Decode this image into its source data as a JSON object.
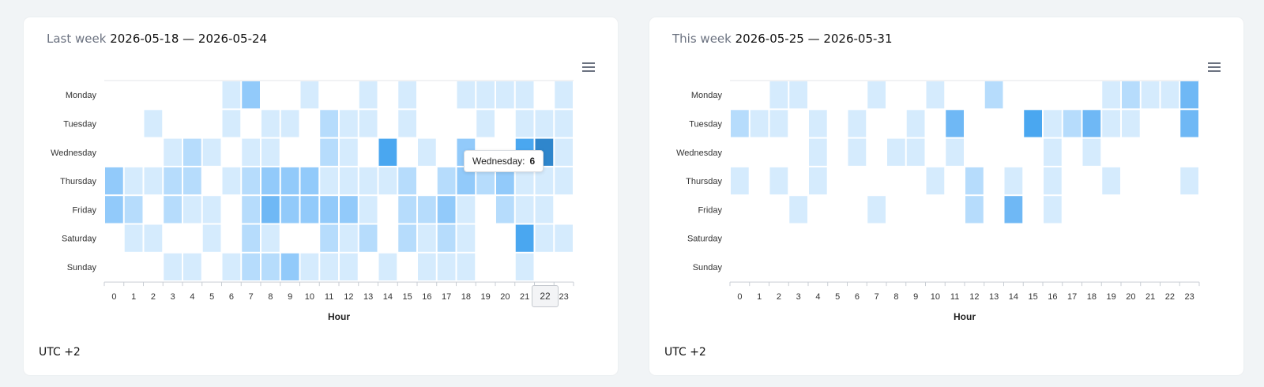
{
  "timezone_label": "UTC +2",
  "chart_data": [
    {
      "type": "heatmap",
      "title_prefix": "Last week",
      "title": "2026-05-18 — 2026-05-24",
      "xlabel": "Hour",
      "ylabel": "",
      "categories_x": [
        "0",
        "1",
        "2",
        "3",
        "4",
        "5",
        "6",
        "7",
        "8",
        "9",
        "10",
        "11",
        "12",
        "13",
        "14",
        "15",
        "16",
        "17",
        "18",
        "19",
        "20",
        "21",
        "22",
        "23"
      ],
      "categories_y": [
        "Monday",
        "Tuesday",
        "Wednesday",
        "Thursday",
        "Friday",
        "Saturday",
        "Sunday"
      ],
      "values": [
        [
          0,
          0,
          0,
          0,
          0,
          0,
          1,
          3,
          0,
          0,
          1,
          0,
          0,
          1,
          0,
          1,
          0,
          0,
          1,
          1,
          1,
          1,
          0,
          1
        ],
        [
          0,
          0,
          1,
          0,
          0,
          0,
          1,
          0,
          1,
          1,
          0,
          2,
          1,
          1,
          0,
          1,
          0,
          0,
          0,
          1,
          0,
          1,
          1,
          1
        ],
        [
          0,
          0,
          0,
          1,
          2,
          1,
          0,
          1,
          1,
          0,
          0,
          2,
          1,
          0,
          5,
          0,
          1,
          0,
          3,
          0,
          0,
          5,
          6,
          1
        ],
        [
          3,
          1,
          1,
          2,
          2,
          0,
          1,
          2,
          3,
          3,
          3,
          1,
          1,
          1,
          1,
          2,
          0,
          2,
          3,
          2,
          3,
          1,
          1,
          1
        ],
        [
          3,
          2,
          0,
          2,
          1,
          1,
          0,
          2,
          4,
          3,
          3,
          3,
          3,
          1,
          0,
          2,
          2,
          3,
          1,
          0,
          2,
          1,
          1,
          0
        ],
        [
          0,
          1,
          1,
          0,
          0,
          1,
          0,
          2,
          1,
          0,
          0,
          2,
          1,
          2,
          0,
          2,
          1,
          2,
          1,
          0,
          0,
          5,
          1,
          1
        ],
        [
          0,
          0,
          0,
          1,
          1,
          0,
          1,
          2,
          2,
          3,
          1,
          1,
          1,
          0,
          1,
          0,
          1,
          1,
          1,
          0,
          0,
          1,
          0,
          0
        ]
      ],
      "tooltip": {
        "category": "Wednesday:",
        "value": "6"
      },
      "axis_tooltip": "22"
    },
    {
      "type": "heatmap",
      "title_prefix": "This week",
      "title": "2026-05-25 — 2026-05-31",
      "xlabel": "Hour",
      "ylabel": "",
      "categories_x": [
        "0",
        "1",
        "2",
        "3",
        "4",
        "5",
        "6",
        "7",
        "8",
        "9",
        "10",
        "11",
        "12",
        "13",
        "14",
        "15",
        "16",
        "17",
        "18",
        "19",
        "20",
        "21",
        "22",
        "23"
      ],
      "categories_y": [
        "Monday",
        "Tuesday",
        "Wednesday",
        "Thursday",
        "Friday",
        "Saturday",
        "Sunday"
      ],
      "values": [
        [
          0,
          0,
          1,
          1,
          0,
          0,
          0,
          1,
          0,
          0,
          1,
          0,
          0,
          2,
          0,
          0,
          0,
          0,
          0,
          1,
          2,
          1,
          1,
          4
        ],
        [
          2,
          1,
          1,
          0,
          1,
          0,
          1,
          0,
          0,
          1,
          0,
          4,
          0,
          0,
          0,
          5,
          1,
          2,
          4,
          1,
          1,
          0,
          0,
          4
        ],
        [
          0,
          0,
          0,
          0,
          1,
          0,
          1,
          0,
          1,
          1,
          0,
          1,
          0,
          0,
          0,
          0,
          1,
          0,
          1,
          0,
          0,
          0,
          0,
          0
        ],
        [
          1,
          0,
          1,
          0,
          1,
          0,
          0,
          0,
          0,
          0,
          1,
          0,
          2,
          0,
          1,
          0,
          1,
          0,
          0,
          1,
          0,
          0,
          0,
          1
        ],
        [
          0,
          0,
          0,
          1,
          0,
          0,
          0,
          1,
          0,
          0,
          0,
          0,
          2,
          0,
          4,
          0,
          1,
          0,
          0,
          0,
          0,
          0,
          0,
          0
        ],
        [
          0,
          0,
          0,
          0,
          0,
          0,
          0,
          0,
          0,
          0,
          0,
          0,
          0,
          0,
          0,
          0,
          0,
          0,
          0,
          0,
          0,
          0,
          0,
          0
        ],
        [
          0,
          0,
          0,
          0,
          0,
          0,
          0,
          0,
          0,
          0,
          0,
          0,
          0,
          0,
          0,
          0,
          0,
          0,
          0,
          0,
          0,
          0,
          0,
          0
        ]
      ]
    }
  ]
}
